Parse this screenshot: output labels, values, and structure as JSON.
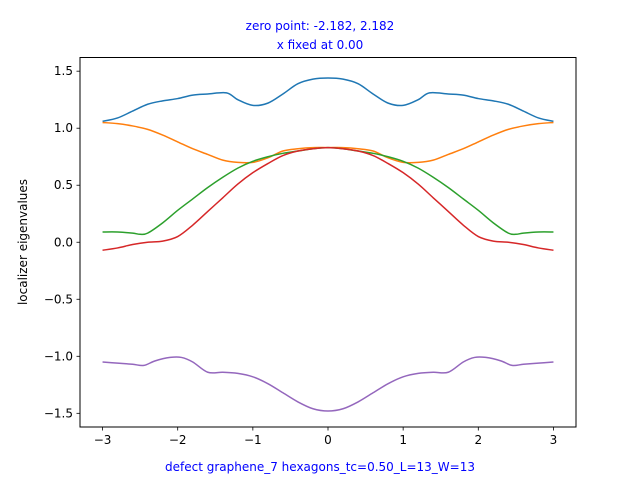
{
  "chart_data": {
    "type": "line",
    "title_line1": "zero point: -2.182, 2.182",
    "title_line2": "x fixed at 0.00",
    "xlabel": "defect graphene_7 hexagons_tc=0.50_L=13_W=13",
    "ylabel": "localizer eigenvalues",
    "xlim": [
      -3.3,
      3.3
    ],
    "ylim": [
      -1.62,
      1.62
    ],
    "xticks": [
      -3,
      -2,
      -1,
      0,
      1,
      2,
      3
    ],
    "xtick_labels": [
      "−3",
      "−2",
      "−1",
      "0",
      "1",
      "2",
      "3"
    ],
    "yticks": [
      -1.5,
      -1.0,
      -0.5,
      0.0,
      0.5,
      1.0,
      1.5
    ],
    "ytick_labels": [
      "−1.5",
      "−1.0",
      "−0.5",
      "0.0",
      "0.5",
      "1.0",
      "1.5"
    ],
    "grid": false,
    "series": [
      {
        "color": "#1f77b4",
        "points": [
          [
            -3.0,
            1.06
          ],
          [
            -2.8,
            1.09
          ],
          [
            -2.6,
            1.15
          ],
          [
            -2.4,
            1.21
          ],
          [
            -2.2,
            1.24
          ],
          [
            -2.0,
            1.26
          ],
          [
            -1.8,
            1.29
          ],
          [
            -1.6,
            1.3
          ],
          [
            -1.35,
            1.31
          ],
          [
            -1.2,
            1.25
          ],
          [
            -1.0,
            1.2
          ],
          [
            -0.8,
            1.22
          ],
          [
            -0.6,
            1.3
          ],
          [
            -0.4,
            1.39
          ],
          [
            -0.2,
            1.43
          ],
          [
            0.0,
            1.44
          ],
          [
            0.2,
            1.43
          ],
          [
            0.4,
            1.39
          ],
          [
            0.6,
            1.3
          ],
          [
            0.8,
            1.22
          ],
          [
            1.0,
            1.2
          ],
          [
            1.2,
            1.25
          ],
          [
            1.35,
            1.31
          ],
          [
            1.6,
            1.3
          ],
          [
            1.8,
            1.29
          ],
          [
            2.0,
            1.26
          ],
          [
            2.2,
            1.24
          ],
          [
            2.4,
            1.21
          ],
          [
            2.6,
            1.15
          ],
          [
            2.8,
            1.09
          ],
          [
            3.0,
            1.06
          ]
        ]
      },
      {
        "color": "#ff7f0e",
        "points": [
          [
            -3.0,
            1.05
          ],
          [
            -2.8,
            1.04
          ],
          [
            -2.6,
            1.02
          ],
          [
            -2.4,
            0.99
          ],
          [
            -2.2,
            0.94
          ],
          [
            -2.0,
            0.88
          ],
          [
            -1.8,
            0.82
          ],
          [
            -1.6,
            0.77
          ],
          [
            -1.4,
            0.72
          ],
          [
            -1.2,
            0.7
          ],
          [
            -1.0,
            0.7
          ],
          [
            -0.8,
            0.74
          ],
          [
            -0.6,
            0.8
          ],
          [
            -0.4,
            0.82
          ],
          [
            -0.2,
            0.83
          ],
          [
            0.0,
            0.83
          ],
          [
            0.2,
            0.83
          ],
          [
            0.4,
            0.82
          ],
          [
            0.6,
            0.8
          ],
          [
            0.8,
            0.74
          ],
          [
            1.0,
            0.7
          ],
          [
            1.2,
            0.7
          ],
          [
            1.4,
            0.72
          ],
          [
            1.6,
            0.77
          ],
          [
            1.8,
            0.82
          ],
          [
            2.0,
            0.88
          ],
          [
            2.2,
            0.94
          ],
          [
            2.4,
            0.99
          ],
          [
            2.6,
            1.02
          ],
          [
            2.8,
            1.04
          ],
          [
            3.0,
            1.05
          ]
        ]
      },
      {
        "color": "#2ca02c",
        "points": [
          [
            -3.0,
            0.09
          ],
          [
            -2.8,
            0.09
          ],
          [
            -2.6,
            0.08
          ],
          [
            -2.5,
            0.07
          ],
          [
            -2.4,
            0.08
          ],
          [
            -2.2,
            0.17
          ],
          [
            -2.0,
            0.28
          ],
          [
            -1.8,
            0.38
          ],
          [
            -1.6,
            0.48
          ],
          [
            -1.4,
            0.57
          ],
          [
            -1.2,
            0.65
          ],
          [
            -1.0,
            0.71
          ],
          [
            -0.8,
            0.75
          ],
          [
            -0.6,
            0.78
          ],
          [
            -0.4,
            0.8
          ],
          [
            -0.2,
            0.82
          ],
          [
            0.0,
            0.83
          ],
          [
            0.2,
            0.82
          ],
          [
            0.4,
            0.8
          ],
          [
            0.6,
            0.78
          ],
          [
            0.8,
            0.75
          ],
          [
            1.0,
            0.71
          ],
          [
            1.2,
            0.65
          ],
          [
            1.4,
            0.57
          ],
          [
            1.6,
            0.48
          ],
          [
            1.8,
            0.38
          ],
          [
            2.0,
            0.28
          ],
          [
            2.2,
            0.17
          ],
          [
            2.4,
            0.08
          ],
          [
            2.5,
            0.07
          ],
          [
            2.6,
            0.08
          ],
          [
            2.8,
            0.09
          ],
          [
            3.0,
            0.09
          ]
        ]
      },
      {
        "color": "#d62728",
        "points": [
          [
            -3.0,
            -0.07
          ],
          [
            -2.8,
            -0.05
          ],
          [
            -2.6,
            -0.02
          ],
          [
            -2.4,
            0.0
          ],
          [
            -2.2,
            0.01
          ],
          [
            -2.0,
            0.05
          ],
          [
            -1.8,
            0.15
          ],
          [
            -1.6,
            0.27
          ],
          [
            -1.4,
            0.39
          ],
          [
            -1.2,
            0.51
          ],
          [
            -1.0,
            0.61
          ],
          [
            -0.8,
            0.69
          ],
          [
            -0.6,
            0.76
          ],
          [
            -0.4,
            0.8
          ],
          [
            -0.2,
            0.82
          ],
          [
            0.0,
            0.83
          ],
          [
            0.2,
            0.82
          ],
          [
            0.4,
            0.8
          ],
          [
            0.6,
            0.76
          ],
          [
            0.8,
            0.69
          ],
          [
            1.0,
            0.61
          ],
          [
            1.2,
            0.51
          ],
          [
            1.4,
            0.39
          ],
          [
            1.6,
            0.27
          ],
          [
            1.8,
            0.15
          ],
          [
            2.0,
            0.05
          ],
          [
            2.2,
            0.01
          ],
          [
            2.4,
            0.0
          ],
          [
            2.6,
            -0.02
          ],
          [
            2.8,
            -0.05
          ],
          [
            3.0,
            -0.07
          ]
        ]
      },
      {
        "color": "#9467bd",
        "points": [
          [
            -3.0,
            -1.05
          ],
          [
            -2.8,
            -1.06
          ],
          [
            -2.6,
            -1.07
          ],
          [
            -2.45,
            -1.08
          ],
          [
            -2.3,
            -1.04
          ],
          [
            -2.1,
            -1.01
          ],
          [
            -1.95,
            -1.01
          ],
          [
            -1.8,
            -1.05
          ],
          [
            -1.6,
            -1.14
          ],
          [
            -1.4,
            -1.14
          ],
          [
            -1.2,
            -1.15
          ],
          [
            -1.0,
            -1.18
          ],
          [
            -0.8,
            -1.24
          ],
          [
            -0.6,
            -1.32
          ],
          [
            -0.4,
            -1.4
          ],
          [
            -0.2,
            -1.46
          ],
          [
            0.0,
            -1.48
          ],
          [
            0.2,
            -1.46
          ],
          [
            0.4,
            -1.4
          ],
          [
            0.6,
            -1.32
          ],
          [
            0.8,
            -1.24
          ],
          [
            1.0,
            -1.18
          ],
          [
            1.2,
            -1.15
          ],
          [
            1.4,
            -1.14
          ],
          [
            1.6,
            -1.14
          ],
          [
            1.8,
            -1.05
          ],
          [
            1.95,
            -1.01
          ],
          [
            2.1,
            -1.01
          ],
          [
            2.3,
            -1.04
          ],
          [
            2.45,
            -1.08
          ],
          [
            2.6,
            -1.07
          ],
          [
            2.8,
            -1.06
          ],
          [
            3.0,
            -1.05
          ]
        ]
      }
    ]
  }
}
